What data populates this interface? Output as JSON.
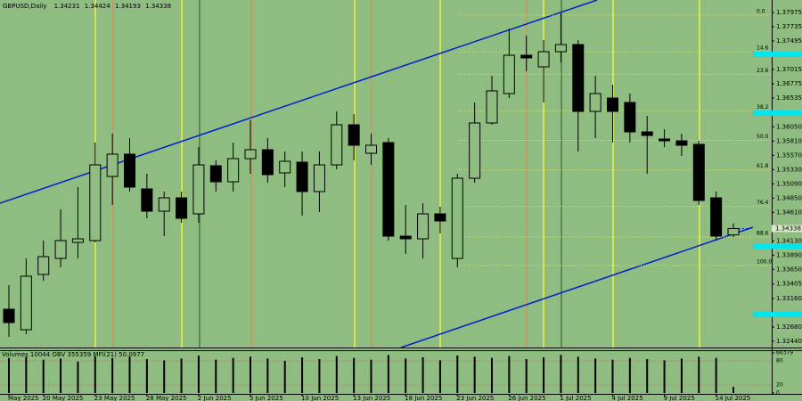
{
  "chart_data": [
    {
      "type": "candlestick",
      "title": "GBPUSD,Daily",
      "last_ohlc": [
        1.34231,
        1.34424,
        1.34193,
        1.34338
      ],
      "categories": [
        "May 2025",
        null,
        "20 May 2025",
        null,
        null,
        "23 May 2025",
        null,
        null,
        "28 May 2025",
        null,
        null,
        "2 Jun 2025",
        null,
        null,
        "5 Jun 2025",
        null,
        null,
        "10 Jun 2025",
        null,
        null,
        "13 Jun 2025",
        null,
        null,
        "18 Jun 2025",
        null,
        null,
        "23 Jun 2025",
        null,
        null,
        "26 Jun 2025",
        null,
        null,
        "1 Jul 2025",
        null,
        null,
        "4 Jul 2025",
        null,
        null,
        "9 Jul 2025",
        null,
        null,
        "14 Jul 2025",
        null
      ],
      "open": [
        1.3298,
        1.32635,
        1.33565,
        1.33835,
        1.34105,
        1.34135,
        1.35215,
        1.3559,
        1.35005,
        1.3463,
        1.34855,
        1.34585,
        1.35395,
        1.35125,
        1.35515,
        1.35665,
        1.35275,
        1.35455,
        1.3496,
        1.3541,
        1.36085,
        1.35605,
        1.35785,
        1.3421,
        1.34165,
        1.34585,
        1.33835,
        1.35185,
        1.36115,
        1.3661,
        1.37255,
        1.3706,
        1.37315,
        1.37435,
        1.3631,
        1.36535,
        1.3646,
        1.35965,
        1.35845,
        1.35815,
        1.35755,
        1.34855,
        1.34231
      ],
      "high": [
        1.33385,
        1.33835,
        1.34135,
        1.3466,
        1.35035,
        1.35785,
        1.35935,
        1.3586,
        1.3526,
        1.3496,
        1.3496,
        1.3571,
        1.35485,
        1.35785,
        1.3616,
        1.3586,
        1.35635,
        1.35635,
        1.35635,
        1.3631,
        1.36265,
        1.35935,
        1.3586,
        1.34735,
        1.34765,
        1.34705,
        1.3526,
        1.3646,
        1.3691,
        1.37705,
        1.37585,
        1.3751,
        1.3796,
        1.3751,
        1.3691,
        1.3676,
        1.3661,
        1.36235,
        1.3601,
        1.35935,
        1.35815,
        1.3496,
        1.34424
      ],
      "low": [
        1.32515,
        1.3256,
        1.3346,
        1.33685,
        1.33835,
        1.34105,
        1.34735,
        1.3496,
        1.3451,
        1.3421,
        1.34435,
        1.34435,
        1.3496,
        1.3496,
        1.3526,
        1.3511,
        1.35035,
        1.34555,
        1.34615,
        1.35335,
        1.35485,
        1.3541,
        1.34135,
        1.3391,
        1.33835,
        1.34255,
        1.33685,
        1.3511,
        1.36085,
        1.36535,
        1.36985,
        1.3646,
        1.37135,
        1.35635,
        1.3586,
        1.35785,
        1.35785,
        1.3526,
        1.3571,
        1.3556,
        1.34735,
        1.34135,
        1.34193
      ],
      "close": [
        1.32755,
        1.33535,
        1.33865,
        1.34135,
        1.34165,
        1.3541,
        1.3559,
        1.35035,
        1.3463,
        1.34855,
        1.3451,
        1.3541,
        1.35125,
        1.35515,
        1.35665,
        1.35245,
        1.3547,
        1.3496,
        1.3541,
        1.36085,
        1.3574,
        1.3574,
        1.3421,
        1.34165,
        1.34585,
        1.34465,
        1.35185,
        1.36115,
        1.36655,
        1.37255,
        1.3721,
        1.37315,
        1.37435,
        1.3631,
        1.3661,
        1.3631,
        1.35965,
        1.35905,
        1.35815,
        1.3574,
        1.3481,
        1.3421,
        1.34338
      ],
      "up_color": "#8fbc80",
      "down_color": "#000000",
      "ylim": [
        1.32335,
        1.38185
      ],
      "yticks": [
        1.37975,
        1.37735,
        1.37495,
        1.37015,
        1.36775,
        1.36535,
        {
          "value": 1.3605,
          "label": "1.36050"
        },
        {
          "value": 1.3581,
          "label": "1.35810"
        },
        {
          "value": 1.3557,
          "label": "1.35570"
        },
        {
          "value": 1.3533,
          "label": "1.35330"
        },
        {
          "value": 1.3509,
          "label": "1.35090"
        },
        {
          "value": 1.3485,
          "label": "1.34850"
        },
        {
          "value": 1.3461,
          "label": "1.34610"
        },
        {
          "value": 1.3413,
          "label": "1.34130"
        },
        {
          "value": 1.3389,
          "label": "1.33890"
        },
        {
          "value": 1.3365,
          "label": "1.33650"
        },
        1.33405,
        {
          "value": 1.3316,
          "label": "1.33160"
        },
        {
          "value": 1.3268,
          "label": "1.32680"
        },
        {
          "value": 1.3244,
          "label": "1.32440"
        }
      ],
      "fib": {
        "high": 1.3793,
        "low": 1.33715,
        "color": "#e6e65a",
        "levels": [
          {
            "value": 0,
            "label": "0.0"
          },
          14.6,
          23.6,
          38.2,
          {
            "value": 50,
            "label": "50.0"
          },
          61.8,
          76.4,
          88.6,
          {
            "value": 100,
            "label": "100.0"
          }
        ]
      }
    },
    {
      "type": "volume",
      "title": "Volumes 10044 OBV 355359 MFI(21) 50.0977",
      "values": [
        58000,
        60000,
        55000,
        57000,
        52000,
        61000,
        58000,
        60000,
        56000,
        54000,
        57000,
        62000,
        55000,
        58000,
        60000,
        57000,
        53000,
        59000,
        56000,
        61000,
        58000,
        55000,
        63000,
        57000,
        59000,
        54000,
        62000,
        60000,
        58000,
        61000,
        56000,
        59000,
        63000,
        60000,
        57000,
        55000,
        58000,
        56000,
        54000,
        57000,
        60000,
        58000,
        10044
      ],
      "color": "#000000",
      "ylim": [
        0,
        66379
      ],
      "yticks": [
        0,
        66379
      ],
      "y2lim": [
        0,
        100
      ],
      "y2ticks": [
        20,
        80
      ]
    }
  ]
}
